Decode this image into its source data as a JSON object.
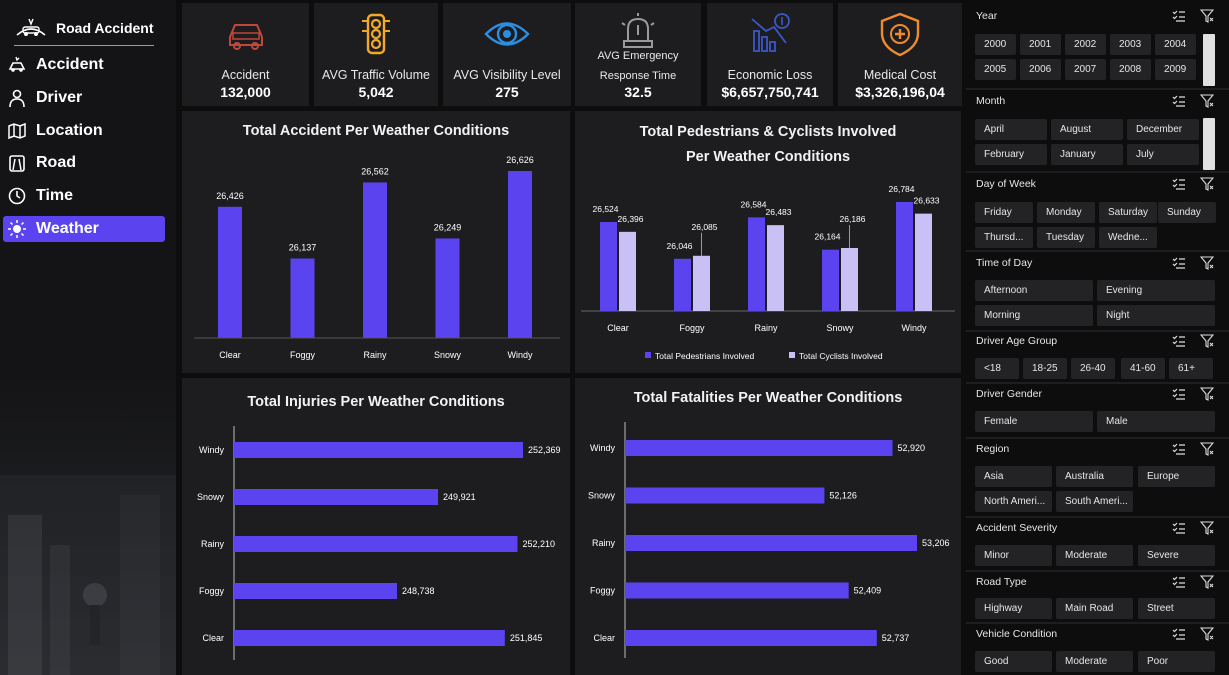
{
  "brand": {
    "title": "Road Accident"
  },
  "nav": [
    {
      "label": "Accident",
      "icon": "accident-icon"
    },
    {
      "label": "Driver",
      "icon": "driver-icon"
    },
    {
      "label": "Location",
      "icon": "map-icon"
    },
    {
      "label": "Road",
      "icon": "road-icon"
    },
    {
      "label": "Time",
      "icon": "clock-icon"
    },
    {
      "label": "Weather",
      "icon": "sun-icon",
      "active": true
    }
  ],
  "kpis": [
    {
      "title": "Accident",
      "value": "132,000",
      "icon": "car-icon",
      "color": "#c0473a"
    },
    {
      "title": "AVG Traffic Volume",
      "value": "5,042",
      "icon": "traffic-light-icon",
      "color": "#f2a92a"
    },
    {
      "title": "AVG Visibility Level",
      "value": "275",
      "icon": "eye-icon",
      "color": "#2b8ee0"
    },
    {
      "title": "AVG Emergency",
      "title2": "Response Time",
      "value": "32.5",
      "icon": "siren-icon",
      "color": "#9a9a9a"
    },
    {
      "title": "Economic Loss",
      "value": "$6,657,750,741",
      "icon": "economic-loss-icon",
      "color": "#3a59c7"
    },
    {
      "title": "Medical Cost",
      "value": "$3,326,196,04",
      "icon": "medical-shield-icon",
      "color": "#ef8a2e"
    }
  ],
  "colors": {
    "primary": "#5b43f0",
    "secondary": "#c9c0f5"
  },
  "chart_data": [
    {
      "type": "bar",
      "title": "Total Accident Per Weather Conditions",
      "categories": [
        "Clear",
        "Foggy",
        "Rainy",
        "Snowy",
        "Windy"
      ],
      "values": [
        26426,
        26137,
        26562,
        26249,
        26626
      ],
      "labels": [
        "26,426",
        "26,137",
        "26,562",
        "26,249",
        "26,626"
      ]
    },
    {
      "type": "bar",
      "title": "Total Pedestrians & Cyclists Involved Per Weather Conditions",
      "categories": [
        "Clear",
        "Foggy",
        "Rainy",
        "Snowy",
        "Windy"
      ],
      "series": [
        {
          "name": "Total Pedestrians Involved",
          "values": [
            26524,
            26046,
            26584,
            26164,
            26784
          ],
          "labels": [
            "26,524",
            "26,046",
            "26,584",
            "26,164",
            "26,784"
          ]
        },
        {
          "name": "Total Cyclists Involved",
          "values": [
            26396,
            26085,
            26483,
            26186,
            26633
          ],
          "labels": [
            "26,396",
            "26,085",
            "26,483",
            "26,186",
            "26,633"
          ]
        }
      ],
      "legend": "bottom"
    },
    {
      "type": "bar",
      "orientation": "horizontal",
      "title": "Total Injuries Per Weather Conditions",
      "categories": [
        "Windy",
        "Snowy",
        "Rainy",
        "Foggy",
        "Clear"
      ],
      "values": [
        252369,
        249921,
        252210,
        248738,
        251845
      ],
      "labels": [
        "252,369",
        "249,921",
        "252,210",
        "248,738",
        "251,845"
      ]
    },
    {
      "type": "bar",
      "orientation": "horizontal",
      "title": "Total Fatalities Per Weather Conditions",
      "categories": [
        "Windy",
        "Snowy",
        "Rainy",
        "Foggy",
        "Clear"
      ],
      "values": [
        52920,
        52126,
        53206,
        52409,
        52737
      ],
      "labels": [
        "52,920",
        "52,126",
        "53,206",
        "52,409",
        "52,737"
      ]
    }
  ],
  "slicers": [
    {
      "title": "Year",
      "items": [
        "2000",
        "2001",
        "2002",
        "2003",
        "2004",
        "2005",
        "2006",
        "2007",
        "2008",
        "2009"
      ]
    },
    {
      "title": "Month",
      "items": [
        "April",
        "August",
        "December",
        "February",
        "January",
        "July"
      ]
    },
    {
      "title": "Day of Week",
      "items": [
        "Friday",
        "Monday",
        "Saturday",
        "Sunday",
        "Thursd...",
        "Tuesday",
        "Wedne..."
      ]
    },
    {
      "title": "Time of Day",
      "items": [
        "Afternoon",
        "Evening",
        "Morning",
        "Night"
      ]
    },
    {
      "title": "Driver Age Group",
      "items": [
        "<18",
        "18-25",
        "26-40",
        "41-60",
        "61+"
      ]
    },
    {
      "title": "Driver Gender",
      "items": [
        "Female",
        "Male"
      ]
    },
    {
      "title": "Region",
      "items": [
        "Asia",
        "Australia",
        "Europe",
        "North Ameri...",
        "South Ameri..."
      ]
    },
    {
      "title": "Accident Severity",
      "items": [
        "Minor",
        "Moderate",
        "Severe"
      ]
    },
    {
      "title": "Road Type",
      "items": [
        "Highway",
        "Main Road",
        "Street"
      ]
    },
    {
      "title": "Vehicle Condition",
      "items": [
        "Good",
        "Moderate",
        "Poor"
      ]
    }
  ]
}
